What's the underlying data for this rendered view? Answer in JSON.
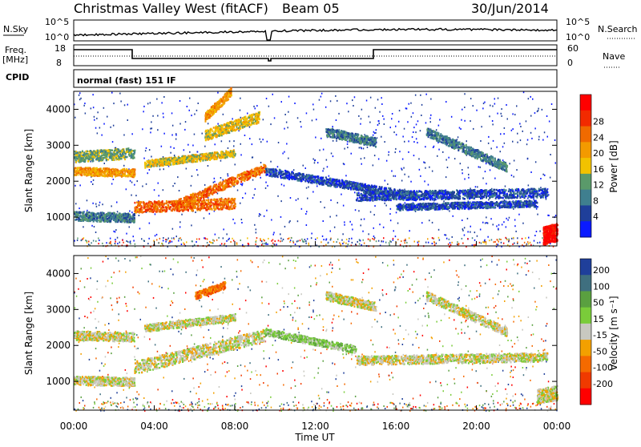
{
  "header": {
    "station": "Christmas Valley West (fitACF)",
    "beam": "Beam 05",
    "date": "30/Jun/2014"
  },
  "left_labels": {
    "nsky": "N.Sky",
    "freq_line1": "Freq.",
    "freq_line2": "[MHz]",
    "cpid": "CPID"
  },
  "right_labels": {
    "nsearch": "N.Search",
    "nave": "Nave"
  },
  "noise_axis": {
    "top": "10^5",
    "bottom": "10^0"
  },
  "freq_axis": {
    "top": "18",
    "bottom": "8"
  },
  "nave_axis": {
    "top": "60",
    "bottom": "0"
  },
  "cpid_text": "normal (fast) 151 IF",
  "colors": {
    "power_scale": [
      "#0a1aff",
      "#1f3f9a",
      "#3f7f8f",
      "#5a9a6a",
      "#f2c200",
      "#f39a00",
      "#f06a00",
      "#f22a00",
      "#ff0000"
    ],
    "velocity_scale": [
      "#1f3f9a",
      "#3f6f7f",
      "#5aa040",
      "#7acc3a",
      "#c8c8c0",
      "#f3a000",
      "#f56a00",
      "#f03a00",
      "#ff0000"
    ]
  },
  "chart_data": [
    {
      "type": "heatmap",
      "title": "Power",
      "xlabel": "Time UT",
      "ylabel": "Slant Range [km]",
      "x_ticks": [
        "00:00",
        "04:00",
        "08:00",
        "12:00",
        "16:00",
        "20:00",
        "00:00"
      ],
      "y_ticks": [
        1000,
        2000,
        3000,
        4000
      ],
      "ylim": [
        200,
        4500
      ],
      "xlim_hours": [
        0,
        24
      ],
      "colorbar": {
        "label": "Power [dB]",
        "ticks": [
          4,
          8,
          12,
          16,
          20,
          24,
          28
        ]
      },
      "bands": [
        {
          "start_h": 0.0,
          "end_h": 3.0,
          "r_start": 2300,
          "r_end": 2250,
          "width": 220,
          "level": 5
        },
        {
          "start_h": 0.0,
          "end_h": 3.0,
          "r_start": 2700,
          "r_end": 2800,
          "width": 300,
          "level": 3
        },
        {
          "start_h": 0.0,
          "end_h": 3.0,
          "r_start": 1050,
          "r_end": 1000,
          "width": 250,
          "level": 2
        },
        {
          "start_h": 3.0,
          "end_h": 8.0,
          "r_start": 1300,
          "r_end": 1400,
          "width": 300,
          "level": 6
        },
        {
          "start_h": 5.0,
          "end_h": 9.5,
          "r_start": 1350,
          "r_end": 2400,
          "width": 250,
          "level": 6
        },
        {
          "start_h": 3.5,
          "end_h": 8.0,
          "r_start": 2500,
          "r_end": 2800,
          "width": 200,
          "level": 4
        },
        {
          "start_h": 6.5,
          "end_h": 9.2,
          "r_start": 3300,
          "r_end": 3800,
          "width": 300,
          "level": 4
        },
        {
          "start_h": 6.5,
          "end_h": 7.8,
          "r_start": 3800,
          "r_end": 4500,
          "width": 250,
          "level": 5
        },
        {
          "start_h": 9.5,
          "end_h": 17.0,
          "r_start": 2300,
          "r_end": 1600,
          "width": 220,
          "level": 1
        },
        {
          "start_h": 14.0,
          "end_h": 23.5,
          "r_start": 1600,
          "r_end": 1700,
          "width": 250,
          "level": 1
        },
        {
          "start_h": 16.0,
          "end_h": 23.0,
          "r_start": 1300,
          "r_end": 1400,
          "width": 180,
          "level": 1
        },
        {
          "start_h": 17.5,
          "end_h": 21.5,
          "r_start": 3400,
          "r_end": 2400,
          "width": 250,
          "level": 2
        },
        {
          "start_h": 12.5,
          "end_h": 15.0,
          "r_start": 3400,
          "r_end": 3100,
          "width": 250,
          "level": 2
        },
        {
          "start_h": 23.3,
          "end_h": 24.0,
          "r_start": 500,
          "r_end": 600,
          "width": 500,
          "level": 8
        }
      ]
    },
    {
      "type": "heatmap",
      "title": "Velocity",
      "xlabel": "Time UT",
      "ylabel": "Slant Range [km]",
      "x_ticks": [
        "00:00",
        "04:00",
        "08:00",
        "12:00",
        "16:00",
        "20:00",
        "00:00"
      ],
      "y_ticks": [
        1000,
        2000,
        3000,
        4000
      ],
      "ylim": [
        200,
        4500
      ],
      "xlim_hours": [
        0,
        24
      ],
      "colorbar": {
        "label": "Velocity [m s⁻¹]",
        "ticks": [
          200,
          100,
          50,
          15,
          -15,
          -50,
          -100,
          -200
        ]
      },
      "bands": [
        {
          "start_h": 0.0,
          "end_h": 3.0,
          "r_start": 2300,
          "r_end": 2250,
          "width": 250,
          "level": 4
        },
        {
          "start_h": 0.0,
          "end_h": 3.0,
          "r_start": 1050,
          "r_end": 1000,
          "width": 250,
          "level": 4
        },
        {
          "start_h": 3.0,
          "end_h": 9.5,
          "r_start": 1400,
          "r_end": 2300,
          "width": 350,
          "level": 4
        },
        {
          "start_h": 3.5,
          "end_h": 8.0,
          "r_start": 2500,
          "r_end": 2800,
          "width": 200,
          "level": 4
        },
        {
          "start_h": 9.5,
          "end_h": 14.0,
          "r_start": 2400,
          "r_end": 1900,
          "width": 200,
          "level": 3
        },
        {
          "start_h": 14.0,
          "end_h": 23.5,
          "r_start": 1600,
          "r_end": 1700,
          "width": 250,
          "level": 4
        },
        {
          "start_h": 17.5,
          "end_h": 21.5,
          "r_start": 3400,
          "r_end": 2400,
          "width": 250,
          "level": 4
        },
        {
          "start_h": 12.5,
          "end_h": 15.0,
          "r_start": 3400,
          "r_end": 3100,
          "width": 250,
          "level": 4
        },
        {
          "start_h": 6.0,
          "end_h": 7.5,
          "r_start": 3400,
          "r_end": 3700,
          "width": 200,
          "level": 6
        },
        {
          "start_h": 23.0,
          "end_h": 24.0,
          "r_start": 600,
          "r_end": 700,
          "width": 400,
          "level": 4
        }
      ]
    }
  ]
}
